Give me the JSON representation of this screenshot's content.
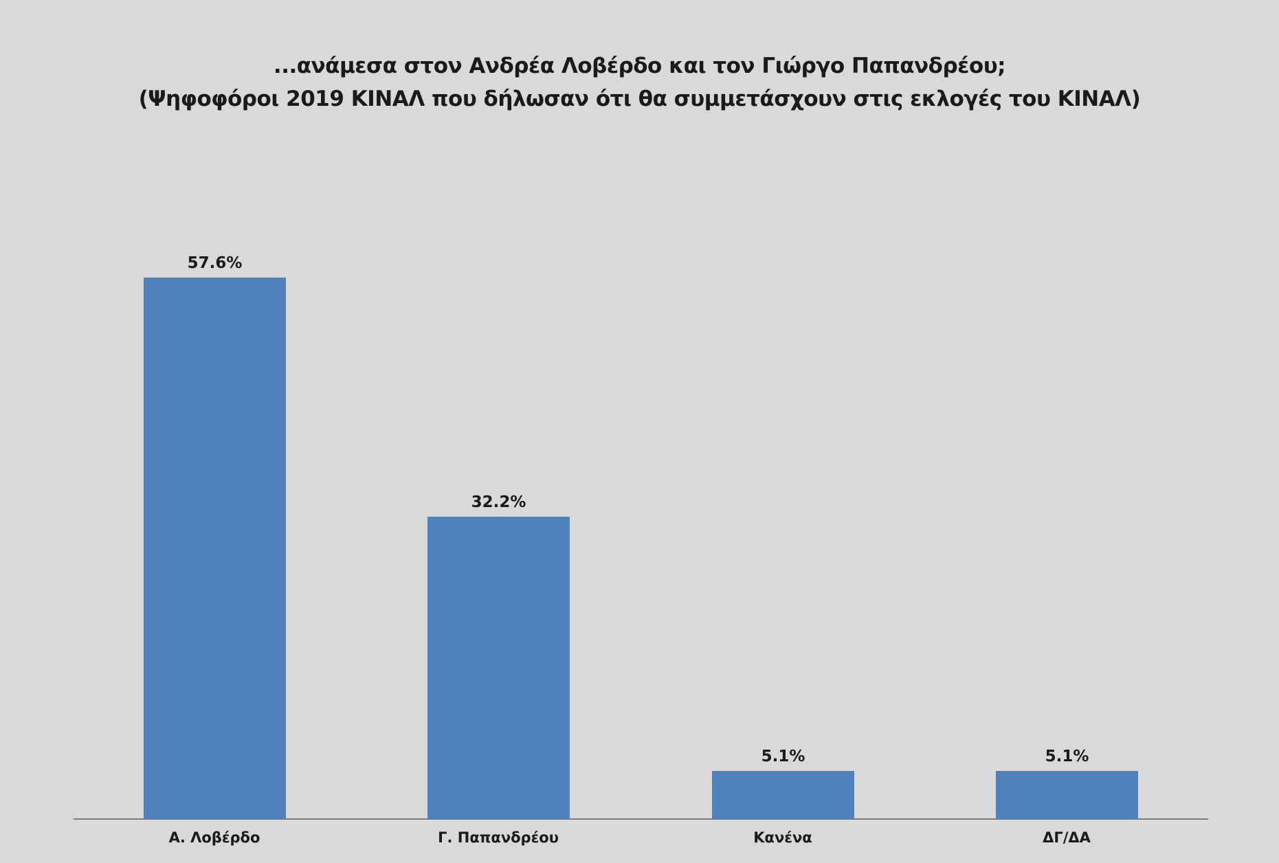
{
  "title": {
    "line1": "...ανάμεσα στον Ανδρέα Λοβέρδο και τον Γιώργο Παπανδρέου;",
    "line2": "(Ψηφοφόροι 2019 ΚΙΝΑΛ που δήλωσαν ότι θα συμμετάσχουν στις εκλογές του ΚΙΝΑΛ)"
  },
  "bars": [
    {
      "label": "Α. Λοβέρδο",
      "value_label": "57.6%",
      "value": 57.6
    },
    {
      "label": "Γ. Παπανδρέου",
      "value_label": "32.2%",
      "value": 32.2
    },
    {
      "label": "Κανένα",
      "value_label": "5.1%",
      "value": 5.1
    },
    {
      "label": "ΔΓ/ΔΑ",
      "value_label": "5.1%",
      "value": 5.1
    }
  ],
  "colors": {
    "bar": "#4f81bd",
    "background": "#d9d9d9",
    "axis": "#7f7f7f"
  },
  "chart_data": {
    "type": "bar",
    "title": "...ανάμεσα στον Ανδρέα Λοβέρδο και τον Γιώργο Παπανδρέου; (Ψηφοφόροι 2019 ΚΙΝΑΛ που δήλωσαν ότι θα συμμετάσχουν στις εκλογές του ΚΙΝΑΛ)",
    "categories": [
      "Α. Λοβέρδο",
      "Γ. Παπανδρέου",
      "Κανένα",
      "ΔΓ/ΔΑ"
    ],
    "values": [
      57.6,
      32.2,
      5.1,
      5.1
    ],
    "data_labels": [
      "57.6%",
      "32.2%",
      "5.1%",
      "5.1%"
    ],
    "xlabel": "",
    "ylabel": "",
    "ylim": [
      0,
      65
    ],
    "grid": false,
    "legend": null
  }
}
